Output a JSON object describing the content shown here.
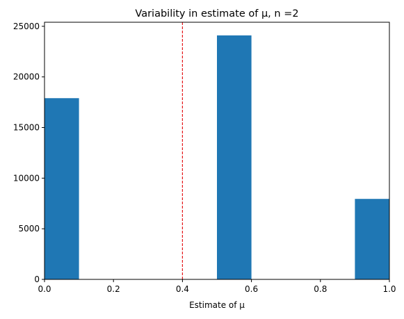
{
  "chart_data": {
    "type": "bar",
    "title": "Variability in estimate of μ, n =2",
    "xlabel": "Estimate of μ",
    "ylabel": "",
    "xlim": [
      0,
      1
    ],
    "ylim": [
      0,
      25400
    ],
    "bins": [
      {
        "x0": 0.0,
        "x1": 0.1,
        "value": 17900
      },
      {
        "x0": 0.5,
        "x1": 0.6,
        "value": 24100
      },
      {
        "x0": 0.9,
        "x1": 1.0,
        "value": 7950
      }
    ],
    "reference_line": {
      "x": 0.4,
      "color": "#e41a1c",
      "style": "dashed"
    },
    "x_ticks": [
      {
        "value": 0.0,
        "label": "0.0"
      },
      {
        "value": 0.2,
        "label": "0.2"
      },
      {
        "value": 0.4,
        "label": "0.4"
      },
      {
        "value": 0.6,
        "label": "0.6"
      },
      {
        "value": 0.8,
        "label": "0.8"
      },
      {
        "value": 1.0,
        "label": "1.0"
      }
    ],
    "y_ticks": [
      {
        "value": 0,
        "label": "0"
      },
      {
        "value": 5000,
        "label": "5000"
      },
      {
        "value": 10000,
        "label": "10000"
      },
      {
        "value": 15000,
        "label": "15000"
      },
      {
        "value": 20000,
        "label": "20000"
      },
      {
        "value": 25000,
        "label": "25000"
      }
    ],
    "bar_color": "#1f77b4",
    "grid": false
  }
}
